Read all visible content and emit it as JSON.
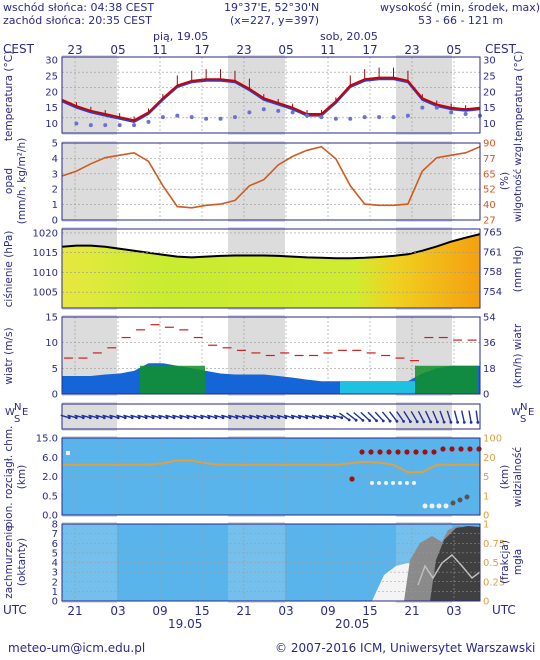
{
  "header": {
    "sunrise": "wschód słońca: 04:38 CEST",
    "sunset": "zachód słońca: 20:35 CEST",
    "coords": "19°37'E, 52°30'N",
    "grid": "(x=227, y=397)",
    "elevation_label": "wysokość (min, środek, max)",
    "elevation_values": "53 - 66 - 121 m"
  },
  "days": {
    "d1_top": "pią, 19.05",
    "d2_top": "sob, 20.05",
    "d1_bottom": "19.05",
    "d2_bottom": "20.05"
  },
  "time_axis": {
    "tz_top": "CEST",
    "tz_bottom": "UTC",
    "hours_top": [
      "23",
      "05",
      "11",
      "17",
      "23",
      "05",
      "11",
      "17",
      "23",
      "05"
    ],
    "hours_bottom": [
      "21",
      "03",
      "09",
      "15",
      "21",
      "03",
      "09",
      "15",
      "21",
      "03"
    ]
  },
  "footer": {
    "email": "meteo-um@icm.edu.pl",
    "copyright": "© 2007-2016 ICM, Uniwersytet Warszawski"
  },
  "colors": {
    "frame": "#2a2a8a",
    "temp_max": "#cc0000",
    "temp_mean": "#e03030",
    "temp_min": "#2a40c8",
    "humidity": "#d05a20",
    "pressure": "#000000",
    "wind": "#cc2020",
    "visibility": "#e0a040",
    "fog": "#c0c0c0"
  },
  "chart_data": [
    {
      "type": "line",
      "title": "temperatura",
      "ylabel": "temperatura (°C)",
      "ylabel_right": "temperatura (°C)",
      "ylim": [
        7,
        31
      ],
      "yticks": [
        10,
        15,
        20,
        25,
        30
      ],
      "x_hours_utc": [
        19,
        21,
        23,
        1,
        3,
        5,
        7,
        9,
        11,
        13,
        15,
        17,
        19,
        21,
        23,
        1,
        3,
        5,
        7,
        9,
        11,
        13,
        15,
        17,
        19,
        21,
        23,
        1,
        3,
        5
      ],
      "series": [
        {
          "values": [
            17.5,
            15.5,
            14,
            13,
            12,
            11,
            13.5,
            18,
            22,
            23.5,
            24,
            24,
            23.5,
            21,
            18,
            16.5,
            15,
            13,
            13,
            17,
            22,
            24,
            24.5,
            24.5,
            23.5,
            18,
            16,
            15,
            14.5,
            15
          ]
        },
        {
          "values": [
            17,
            15,
            13.5,
            12.5,
            11.5,
            10.5,
            13,
            17.5,
            21.5,
            23,
            23.5,
            23.5,
            23,
            20.5,
            17.5,
            16,
            14.5,
            12.5,
            12.5,
            16.5,
            21.5,
            23.5,
            24,
            24,
            23,
            17.5,
            15.5,
            14.5,
            14,
            14.5
          ]
        },
        {
          "values": [
            null,
            10,
            9.5,
            9.5,
            9.5,
            9.5,
            10.5,
            12,
            12.5,
            12,
            11.5,
            11.5,
            12,
            13.5,
            14.5,
            14,
            13.5,
            12.5,
            12,
            11.5,
            11.5,
            12,
            12,
            12,
            12.5,
            15,
            15,
            13.5,
            13,
            12.5
          ]
        }
      ]
    },
    {
      "type": "line",
      "title": "opad",
      "ylabel": "opad (mm/h, kg/m²/h)",
      "ylabel_right": "wilgotność wzgl. (%)",
      "ylim": [
        0,
        5
      ],
      "yticks": [
        0,
        1,
        2,
        3,
        4,
        5
      ],
      "yticks_right": [
        "27",
        "40",
        "52",
        "65",
        "77",
        "90"
      ],
      "series": [
        {
          "values": [
            63,
            67,
            73,
            78,
            80,
            82,
            75,
            55,
            38,
            37,
            39,
            40,
            43,
            55,
            60,
            72,
            79,
            84,
            87,
            77,
            55,
            40,
            39,
            39,
            40,
            67,
            78,
            80,
            82,
            87
          ]
        }
      ]
    },
    {
      "type": "area",
      "title": "ciśnienie",
      "ylabel": "ciśnienie (hPa)",
      "ylabel_right": "(mm Hg)",
      "ylim": [
        1001,
        1021
      ],
      "yticks": [
        1005,
        1010,
        1015,
        1020
      ],
      "yticks_right": [
        "754",
        "758",
        "761",
        "765"
      ],
      "series": [
        {
          "values": [
            1016.5,
            1016.8,
            1016.8,
            1016.5,
            1016,
            1015.5,
            1015,
            1014.5,
            1014,
            1013.8,
            1014,
            1014.2,
            1014.3,
            1014.3,
            1014.3,
            1014.2,
            1014,
            1013.8,
            1013.7,
            1013.6,
            1013.6,
            1013.7,
            1013.9,
            1014.2,
            1014.6,
            1015.5,
            1016.6,
            1017.8,
            1018.8,
            1019.7
          ]
        }
      ]
    },
    {
      "type": "area",
      "title": "wiatr",
      "ylabel": "wiatr (m/s)",
      "ylabel_right": "(km/h) wiatr",
      "ylim": [
        0,
        15
      ],
      "yticks": [
        0,
        5,
        10,
        15
      ],
      "yticks_right": [
        "0",
        "18",
        "36",
        "54"
      ],
      "series": [
        {
          "values": [
            3.5,
            3.5,
            3.5,
            3.8,
            4,
            4.5,
            6,
            6,
            5.5,
            5,
            4.5,
            4,
            3.8,
            3.8,
            3.8,
            3.5,
            3.2,
            2.8,
            2.5,
            2.5,
            2.5,
            2.5,
            2.5,
            2.5,
            2.5,
            4,
            5,
            5.5,
            5.5,
            5.5
          ]
        },
        {
          "values": [
            7,
            7,
            8,
            9,
            11,
            12.5,
            13.5,
            13,
            12.5,
            11,
            9.5,
            9,
            8.5,
            8,
            7.5,
            8,
            7.5,
            7.5,
            8,
            8.5,
            8.5,
            8,
            7.5,
            7,
            6.5,
            11,
            11,
            10.5,
            10.5,
            11
          ]
        }
      ]
    },
    {
      "type": "area",
      "title": "widzialność",
      "ylabel": "pion. rozciągł. chm. (km)",
      "ylabel_right": "widzialność (km)",
      "yticks": [
        "0.0",
        "0.5",
        "2.0",
        "6.0",
        "15.0"
      ],
      "yticks_right": [
        "0",
        "1",
        "5",
        "20",
        "100"
      ],
      "series": [
        {
          "values": [
            20,
            20,
            20,
            20,
            20,
            20,
            20,
            22,
            26,
            26,
            22,
            20,
            20,
            20,
            20,
            20,
            20,
            20,
            20,
            20,
            22,
            24,
            23,
            20,
            13,
            13,
            20,
            20,
            20,
            20
          ]
        }
      ]
    },
    {
      "type": "area",
      "title": "zachmurzenie",
      "ylabel": "zachmurzenie (oktanty)",
      "ylabel_right": "(frakcja) mgła",
      "ylim": [
        0,
        8
      ],
      "yticks": [
        0,
        1,
        2,
        3,
        4,
        5,
        6,
        7,
        8
      ],
      "yticks_right": [
        "0",
        "0.25",
        "0.5",
        "0.75",
        "1"
      ],
      "series": [
        {
          "values": [
            0,
            0,
            0,
            0,
            0,
            0,
            0,
            0,
            0,
            0,
            0,
            0,
            0,
            0,
            0,
            0,
            0,
            0,
            0,
            0,
            0,
            0,
            0.5,
            2,
            4,
            5.5,
            6.5,
            7.5,
            8,
            8
          ]
        }
      ]
    }
  ]
}
